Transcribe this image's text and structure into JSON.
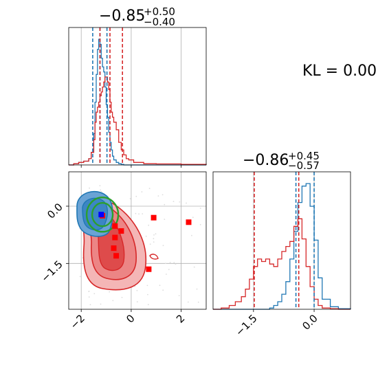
{
  "chart_data": [
    {
      "type": "histogram",
      "panel": "top-left",
      "title": {
        "main": "−0.85",
        "plus": "+0.50",
        "minus": "−0.40"
      },
      "x": [
        -2.5,
        -2.3,
        -2.1,
        -1.9,
        -1.7,
        -1.6,
        -1.5,
        -1.45,
        -1.4,
        -1.35,
        -1.3,
        -1.25,
        -1.2,
        -1.15,
        -1.1,
        -1.05,
        -1.0,
        -0.95,
        -0.9,
        -0.85,
        -0.8,
        -0.75,
        -0.7,
        -0.6,
        -0.5,
        -0.4,
        -0.3,
        -0.2,
        -0.1,
        0.1,
        0.5,
        1.0,
        2.0,
        3.0
      ],
      "xlim": [
        -2.5,
        3.0
      ],
      "grid": true,
      "series": [
        {
          "color": "#1f77b4",
          "values": [
            0,
            0.01,
            0.02,
            0.03,
            0.05,
            0.1,
            0.25,
            0.5,
            0.72,
            0.92,
            1.0,
            0.96,
            0.85,
            0.78,
            0.74,
            0.62,
            0.48,
            0.38,
            0.26,
            0.18,
            0.12,
            0.07,
            0.04,
            0.02,
            0.01,
            0.005,
            0,
            0,
            0,
            0,
            0,
            0,
            0,
            0
          ]
        },
        {
          "color": "#d62728",
          "values": [
            0,
            0.01,
            0.02,
            0.03,
            0.05,
            0.1,
            0.2,
            0.34,
            0.42,
            0.46,
            0.5,
            0.55,
            0.58,
            0.62,
            0.66,
            0.7,
            0.7,
            0.66,
            0.6,
            0.5,
            0.42,
            0.38,
            0.34,
            0.28,
            0.18,
            0.12,
            0.08,
            0.05,
            0.04,
            0.02,
            0.01,
            0.008,
            0.005,
            0
          ]
        }
      ],
      "quantiles": {
        "#1f77b4": [
          -1.54,
          -1.25,
          -0.97
        ],
        "#d62728": [
          -1.25,
          -0.85,
          -0.35
        ]
      }
    },
    {
      "type": "scatter",
      "panel": "bottom-left",
      "xlim": [
        -2.5,
        3.0
      ],
      "ylim": [
        -2.7,
        0.9
      ],
      "xticks": [
        "−2",
        "0",
        "2"
      ],
      "yticks": [
        "−1.5",
        "0.0"
      ],
      "xtick_values": [
        -2,
        0,
        2
      ],
      "ytick_values": [
        -1.5,
        0.0
      ],
      "grid": true,
      "red_points": [
        {
          "x": -1.15,
          "y": -0.25
        },
        {
          "x": -0.65,
          "y": -0.52
        },
        {
          "x": -0.4,
          "y": -0.65
        },
        {
          "x": -0.65,
          "y": -0.82
        },
        {
          "x": -0.7,
          "y": -1.1
        },
        {
          "x": -0.6,
          "y": -1.3
        },
        {
          "x": 0.9,
          "y": -0.3
        },
        {
          "x": 2.3,
          "y": -0.42
        },
        {
          "x": 0.7,
          "y": -1.65
        }
      ],
      "blue_point": {
        "x": -1.2,
        "y": -0.22
      },
      "colors": {
        "red": "#ff0000",
        "blue": "#0000ff",
        "green": "#2ca02c",
        "contour_blue": "#1f77b4",
        "contour_red": "#d62728"
      }
    },
    {
      "type": "histogram",
      "panel": "bottom-right",
      "title": {
        "main": "−0.86",
        "plus": "+0.45",
        "minus": "−0.57"
      },
      "xlim": [
        -2.5,
        0.9
      ],
      "xticks": [
        "−1.5",
        "0.0"
      ],
      "xtick_values": [
        -1.5,
        0.0
      ],
      "grid": true,
      "x": [
        -2.5,
        -2.3,
        -2.1,
        -1.95,
        -1.8,
        -1.7,
        -1.6,
        -1.5,
        -1.4,
        -1.3,
        -1.2,
        -1.1,
        -1.0,
        -0.9,
        -0.8,
        -0.7,
        -0.6,
        -0.5,
        -0.4,
        -0.3,
        -0.2,
        -0.1,
        0.0,
        0.1,
        0.2,
        0.4,
        0.6,
        0.9
      ],
      "series": [
        {
          "color": "#1f77b4",
          "values": [
            0,
            0,
            0,
            0,
            0,
            0,
            0,
            0,
            0,
            0,
            0,
            0.01,
            0.03,
            0.06,
            0.12,
            0.22,
            0.4,
            0.62,
            0.85,
            0.98,
            1.0,
            0.82,
            0.55,
            0.25,
            0.08,
            0.02,
            0.005,
            0
          ]
        },
        {
          "color": "#d62728",
          "values": [
            0,
            0.01,
            0.03,
            0.06,
            0.1,
            0.16,
            0.24,
            0.34,
            0.4,
            0.38,
            0.4,
            0.36,
            0.34,
            0.4,
            0.46,
            0.5,
            0.54,
            0.66,
            0.72,
            0.56,
            0.34,
            0.18,
            0.08,
            0.03,
            0.01,
            0.005,
            0,
            0
          ]
        }
      ],
      "quantiles": {
        "#1f77b4": [
          -0.45,
          0.0
        ],
        "#d62728": [
          -1.48,
          -0.38
        ]
      }
    }
  ],
  "annotation": {
    "kl": "KL = 0.00"
  }
}
